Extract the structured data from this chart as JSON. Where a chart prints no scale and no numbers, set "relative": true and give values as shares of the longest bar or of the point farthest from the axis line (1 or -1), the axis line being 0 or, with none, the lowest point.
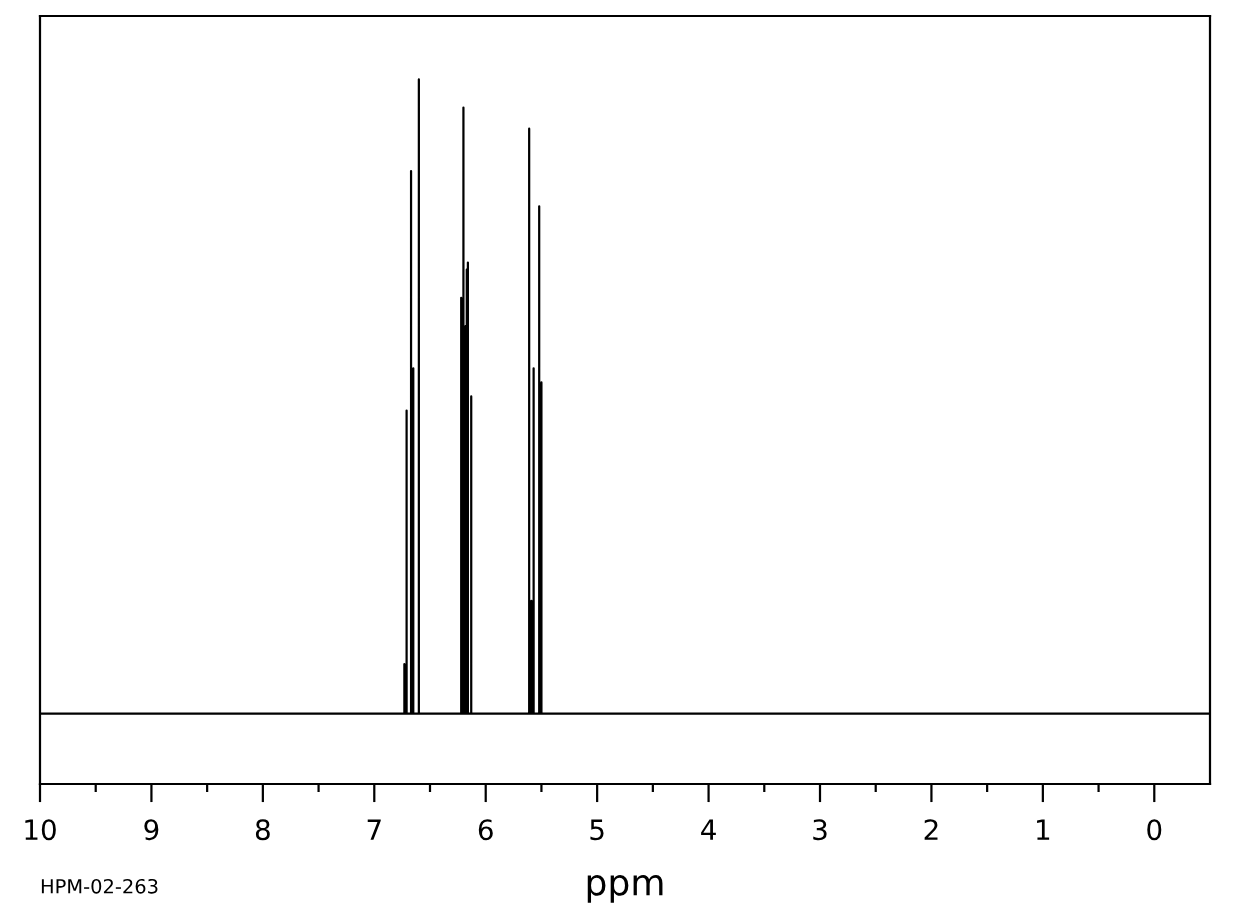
{
  "chart_data": {
    "type": "line",
    "relative": true,
    "xlabel": "ppm",
    "xlim": [
      10,
      -0.5
    ],
    "xticks": [
      10,
      {
        "value": 9.5,
        "label": null
      },
      9,
      {
        "value": 8.5,
        "label": null
      },
      8,
      {
        "value": 7.5,
        "label": null
      },
      7,
      {
        "value": 6.5,
        "label": null
      },
      6,
      {
        "value": 5.5,
        "label": null
      },
      5,
      {
        "value": 4.5,
        "label": null
      },
      4,
      {
        "value": 3.5,
        "label": null
      },
      3,
      {
        "value": 2.5,
        "label": null
      },
      2,
      {
        "value": 1.5,
        "label": null
      },
      1,
      {
        "value": 0.5,
        "label": null
      },
      0
    ],
    "tick_labels": "x",
    "line_style": "solid",
    "annotations": [
      "HPM-02-263"
    ],
    "series": [
      {
        "color": "#000000",
        "x": [
          10,
          6.73,
          6.73,
          6.73,
          6.71,
          6.71,
          6.71,
          6.67,
          6.67,
          6.67,
          6.65,
          6.65,
          6.65,
          6.6,
          6.6,
          6.6,
          6.22,
          6.22,
          6.22,
          6.2,
          6.2,
          6.2,
          6.18,
          6.18,
          6.18,
          6.17,
          6.17,
          6.17,
          6.16,
          6.16,
          6.16,
          6.13,
          6.13,
          6.13,
          5.61,
          5.61,
          5.61,
          5.59,
          5.59,
          5.59,
          5.57,
          5.57,
          5.57,
          5.52,
          5.52,
          5.52,
          5.5,
          5.5,
          5.5,
          -0.5
        ],
        "values": [
          0.1,
          0.1,
          0.17,
          0.1,
          0.1,
          0.53,
          0.1,
          0.1,
          0.87,
          0.1,
          0.1,
          0.59,
          0.1,
          0.1,
          1.0,
          0.1,
          0.1,
          0.69,
          0.1,
          0.1,
          0.96,
          0.1,
          0.1,
          0.65,
          0.1,
          0.1,
          0.73,
          0.1,
          0.1,
          0.74,
          0.1,
          0.1,
          0.55,
          0.1,
          0.1,
          0.93,
          0.1,
          0.1,
          0.26,
          0.1,
          0.1,
          0.59,
          0.1,
          0.1,
          0.82,
          0.1,
          0.1,
          0.57,
          0.1,
          0.1
        ]
      }
    ]
  }
}
